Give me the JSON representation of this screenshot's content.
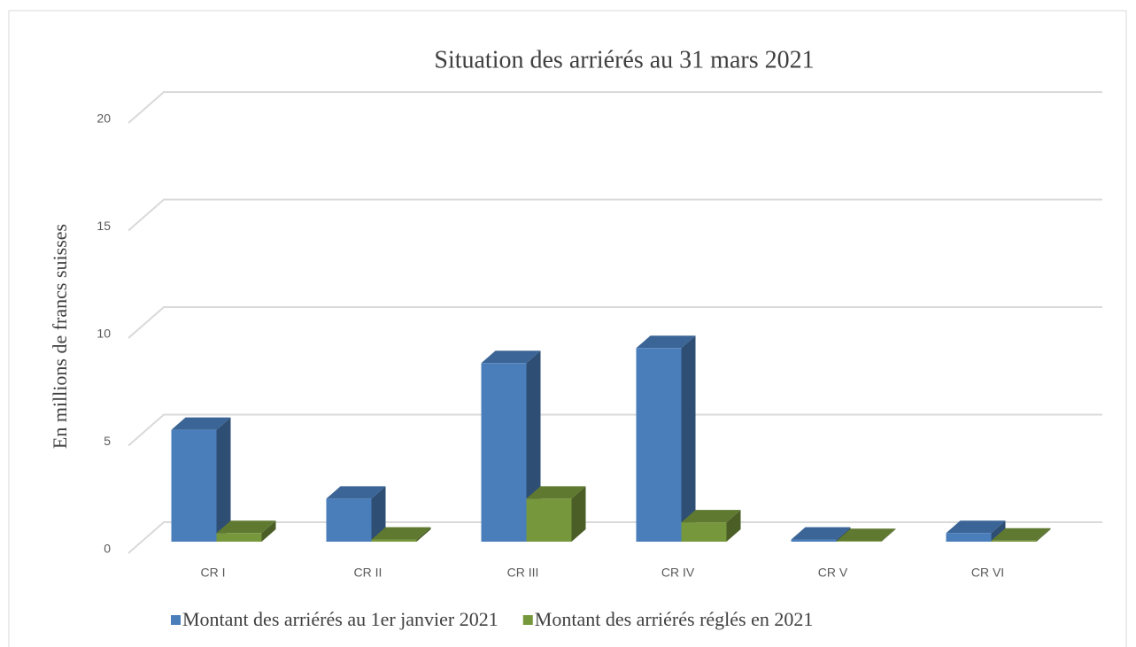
{
  "chart_data": {
    "type": "bar3d",
    "title": "Situation des arriérés au 31 mars 2021",
    "y_label": "En millions de francs suisses",
    "categories": [
      "CR I",
      "CR II",
      "CR III",
      "CR IV",
      "CR V",
      "CR VI"
    ],
    "series": [
      {
        "name": "Montant des arriérés au 1er janvier 2021",
        "color": "#4a7ebb",
        "values": [
          5.2,
          2.0,
          8.3,
          9.0,
          0.1,
          0.4
        ]
      },
      {
        "name": "Montant des arriérés réglés en 2021",
        "color": "#77973d",
        "values": [
          0.4,
          0.1,
          2.0,
          0.9,
          0.03,
          0.05
        ]
      }
    ],
    "ylim": [
      0,
      20
    ],
    "yticks": [
      0,
      5,
      10,
      15,
      20
    ],
    "grid": true,
    "legend": "bottom"
  }
}
